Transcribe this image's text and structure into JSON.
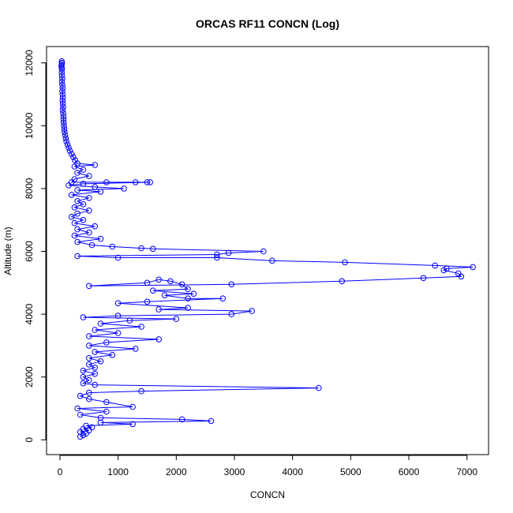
{
  "chart_data": {
    "type": "scatter",
    "title": "ORCAS RF11 CONCN (Log)",
    "xlabel": "CONCN",
    "ylabel": "Altitude (m)",
    "xlim": [
      -230,
      7370
    ],
    "ylim": [
      -470,
      12520
    ],
    "x_ticks": [
      0,
      1000,
      2000,
      3000,
      4000,
      5000,
      6000,
      7000
    ],
    "y_ticks": [
      0,
      2000,
      4000,
      6000,
      8000,
      10000,
      12000
    ],
    "grid": false,
    "legend": "none",
    "series": [
      {
        "color": "#0000ff",
        "marker": "circle-open",
        "connected": true,
        "points": [
          [
            30,
            12050
          ],
          [
            35,
            12000
          ],
          [
            30,
            11950
          ],
          [
            25,
            11900
          ],
          [
            30,
            11850
          ],
          [
            35,
            11800
          ],
          [
            30,
            11700
          ],
          [
            35,
            11600
          ],
          [
            40,
            11500
          ],
          [
            35,
            11400
          ],
          [
            40,
            11300
          ],
          [
            45,
            11200
          ],
          [
            40,
            11100
          ],
          [
            45,
            11000
          ],
          [
            50,
            10900
          ],
          [
            45,
            10800
          ],
          [
            50,
            10700
          ],
          [
            55,
            10600
          ],
          [
            50,
            10500
          ],
          [
            55,
            10400
          ],
          [
            60,
            10300
          ],
          [
            60,
            10200
          ],
          [
            65,
            10100
          ],
          [
            70,
            10000
          ],
          [
            75,
            9900
          ],
          [
            80,
            9800
          ],
          [
            90,
            9700
          ],
          [
            100,
            9600
          ],
          [
            110,
            9500
          ],
          [
            130,
            9400
          ],
          [
            150,
            9300
          ],
          [
            170,
            9200
          ],
          [
            200,
            9100
          ],
          [
            230,
            9000
          ],
          [
            260,
            8900
          ],
          [
            300,
            8800
          ],
          [
            600,
            8750
          ],
          [
            250,
            8700
          ],
          [
            400,
            8600
          ],
          [
            300,
            8500
          ],
          [
            500,
            8400
          ],
          [
            250,
            8300
          ],
          [
            200,
            8200
          ],
          [
            800,
            8200
          ],
          [
            1300,
            8200
          ],
          [
            1500,
            8200
          ],
          [
            1550,
            8200
          ],
          [
            400,
            8150
          ],
          [
            150,
            8100
          ],
          [
            600,
            8050
          ],
          [
            1100,
            8000
          ],
          [
            300,
            7950
          ],
          [
            700,
            7900
          ],
          [
            200,
            7800
          ],
          [
            500,
            7700
          ],
          [
            300,
            7600
          ],
          [
            400,
            7500
          ],
          [
            250,
            7400
          ],
          [
            500,
            7300
          ],
          [
            300,
            7200
          ],
          [
            200,
            7100
          ],
          [
            400,
            7000
          ],
          [
            250,
            6900
          ],
          [
            600,
            6800
          ],
          [
            300,
            6700
          ],
          [
            500,
            6600
          ],
          [
            250,
            6500
          ],
          [
            700,
            6400
          ],
          [
            300,
            6300
          ],
          [
            550,
            6200
          ],
          [
            900,
            6150
          ],
          [
            1400,
            6100
          ],
          [
            1600,
            6080
          ],
          [
            3500,
            6000
          ],
          [
            2900,
            5950
          ],
          [
            2700,
            5900
          ],
          [
            300,
            5850
          ],
          [
            1000,
            5800
          ],
          [
            2700,
            5800
          ],
          [
            3650,
            5700
          ],
          [
            4900,
            5650
          ],
          [
            6450,
            5550
          ],
          [
            7100,
            5500
          ],
          [
            6650,
            5450
          ],
          [
            6600,
            5400
          ],
          [
            6850,
            5300
          ],
          [
            6900,
            5200
          ],
          [
            6250,
            5150
          ],
          [
            4850,
            5050
          ],
          [
            2950,
            4950
          ],
          [
            500,
            4900
          ],
          [
            1500,
            5000
          ],
          [
            1700,
            5100
          ],
          [
            1900,
            5050
          ],
          [
            2100,
            4950
          ],
          [
            2200,
            4800
          ],
          [
            1600,
            4750
          ],
          [
            2300,
            4650
          ],
          [
            1800,
            4600
          ],
          [
            2200,
            4500
          ],
          [
            2800,
            4500
          ],
          [
            1500,
            4400
          ],
          [
            1000,
            4350
          ],
          [
            2200,
            4200
          ],
          [
            1700,
            4150
          ],
          [
            3300,
            4100
          ],
          [
            2950,
            4000
          ],
          [
            1000,
            3950
          ],
          [
            400,
            3900
          ],
          [
            2000,
            3850
          ],
          [
            1200,
            3800
          ],
          [
            700,
            3700
          ],
          [
            1400,
            3600
          ],
          [
            600,
            3500
          ],
          [
            1000,
            3400
          ],
          [
            500,
            3300
          ],
          [
            1700,
            3200
          ],
          [
            800,
            3100
          ],
          [
            500,
            3000
          ],
          [
            1300,
            2900
          ],
          [
            600,
            2800
          ],
          [
            900,
            2700
          ],
          [
            500,
            2600
          ],
          [
            700,
            2500
          ],
          [
            500,
            2400
          ],
          [
            600,
            2300
          ],
          [
            400,
            2200
          ],
          [
            600,
            2100
          ],
          [
            400,
            2000
          ],
          [
            500,
            1900
          ],
          [
            400,
            1800
          ],
          [
            600,
            1750
          ],
          [
            4450,
            1650
          ],
          [
            1400,
            1550
          ],
          [
            500,
            1500
          ],
          [
            350,
            1400
          ],
          [
            500,
            1300
          ],
          [
            800,
            1200
          ],
          [
            1250,
            1050
          ],
          [
            300,
            1000
          ],
          [
            800,
            900
          ],
          [
            350,
            800
          ],
          [
            700,
            700
          ],
          [
            2100,
            650
          ],
          [
            2600,
            600
          ],
          [
            700,
            550
          ],
          [
            1250,
            500
          ],
          [
            450,
            450
          ],
          [
            550,
            400
          ],
          [
            400,
            350
          ],
          [
            500,
            300
          ],
          [
            350,
            250
          ],
          [
            450,
            200
          ],
          [
            400,
            150
          ],
          [
            350,
            100
          ]
        ]
      }
    ]
  }
}
